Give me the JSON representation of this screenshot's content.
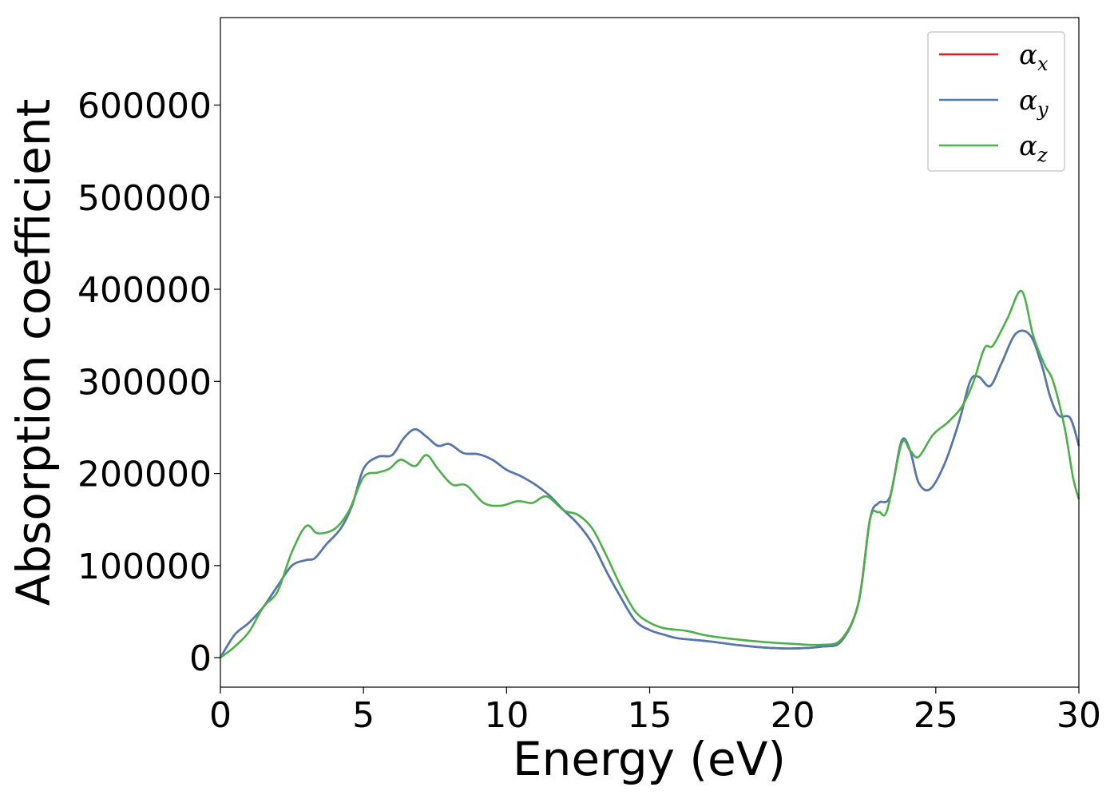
{
  "chart_data": {
    "type": "line",
    "title": "",
    "xlabel": "Energy (eV)",
    "ylabel": "Absorption coefficient",
    "xlim": [
      0,
      30
    ],
    "ylim": [
      -32000,
      695000
    ],
    "xticks": [
      0,
      5,
      10,
      15,
      20,
      25,
      30
    ],
    "yticks": [
      0,
      100000,
      200000,
      300000,
      400000,
      500000,
      600000
    ],
    "grid": false,
    "legend_position": "top-right",
    "series": [
      {
        "name": "α_x",
        "symbol": "α",
        "subscript": "x",
        "color": "#e41a1c",
        "points": [
          [
            0,
            0
          ],
          [
            0.5,
            25000
          ],
          [
            1,
            38000
          ],
          [
            1.5,
            55000
          ],
          [
            2,
            78000
          ],
          [
            2.5,
            100000
          ],
          [
            3,
            106000
          ],
          [
            3.3,
            108000
          ],
          [
            3.7,
            123000
          ],
          [
            4.2,
            140000
          ],
          [
            4.6,
            165000
          ],
          [
            5,
            205000
          ],
          [
            5.5,
            218000
          ],
          [
            6,
            220000
          ],
          [
            6.4,
            238000
          ],
          [
            6.8,
            248000
          ],
          [
            7.2,
            240000
          ],
          [
            7.6,
            230000
          ],
          [
            8,
            232000
          ],
          [
            8.5,
            222000
          ],
          [
            9,
            221000
          ],
          [
            9.5,
            215000
          ],
          [
            10,
            204000
          ],
          [
            10.5,
            197000
          ],
          [
            11,
            188000
          ],
          [
            11.5,
            176000
          ],
          [
            12,
            160000
          ],
          [
            12.5,
            145000
          ],
          [
            13,
            124000
          ],
          [
            13.5,
            93000
          ],
          [
            14,
            65000
          ],
          [
            14.5,
            40000
          ],
          [
            15,
            30000
          ],
          [
            15.5,
            25000
          ],
          [
            16,
            21000
          ],
          [
            17,
            18000
          ],
          [
            18,
            14000
          ],
          [
            19,
            11000
          ],
          [
            20,
            10000
          ],
          [
            21,
            12000
          ],
          [
            21.7,
            18000
          ],
          [
            22.3,
            60000
          ],
          [
            22.7,
            150000
          ],
          [
            23,
            168000
          ],
          [
            23.4,
            175000
          ],
          [
            23.8,
            235000
          ],
          [
            24.1,
            225000
          ],
          [
            24.4,
            190000
          ],
          [
            24.8,
            183000
          ],
          [
            25.3,
            210000
          ],
          [
            25.8,
            255000
          ],
          [
            26.2,
            300000
          ],
          [
            26.5,
            305000
          ],
          [
            26.9,
            295000
          ],
          [
            27.3,
            320000
          ],
          [
            27.8,
            352000
          ],
          [
            28.3,
            350000
          ],
          [
            28.7,
            318000
          ],
          [
            29,
            283000
          ],
          [
            29.3,
            263000
          ],
          [
            29.7,
            260000
          ],
          [
            30,
            230000
          ]
        ]
      },
      {
        "name": "α_y",
        "symbol": "α",
        "subscript": "y",
        "color": "#4e7ab0",
        "points": [
          [
            0,
            0
          ],
          [
            0.5,
            25000
          ],
          [
            1,
            38000
          ],
          [
            1.5,
            55000
          ],
          [
            2,
            78000
          ],
          [
            2.5,
            100000
          ],
          [
            3,
            106000
          ],
          [
            3.3,
            108000
          ],
          [
            3.7,
            123000
          ],
          [
            4.2,
            140000
          ],
          [
            4.6,
            165000
          ],
          [
            5,
            205000
          ],
          [
            5.5,
            218000
          ],
          [
            6,
            220000
          ],
          [
            6.4,
            238000
          ],
          [
            6.8,
            248000
          ],
          [
            7.2,
            240000
          ],
          [
            7.6,
            230000
          ],
          [
            8,
            232000
          ],
          [
            8.5,
            222000
          ],
          [
            9,
            221000
          ],
          [
            9.5,
            215000
          ],
          [
            10,
            204000
          ],
          [
            10.5,
            197000
          ],
          [
            11,
            188000
          ],
          [
            11.5,
            176000
          ],
          [
            12,
            160000
          ],
          [
            12.5,
            145000
          ],
          [
            13,
            124000
          ],
          [
            13.5,
            93000
          ],
          [
            14,
            65000
          ],
          [
            14.5,
            40000
          ],
          [
            15,
            30000
          ],
          [
            15.5,
            25000
          ],
          [
            16,
            21000
          ],
          [
            17,
            18000
          ],
          [
            18,
            14000
          ],
          [
            19,
            11000
          ],
          [
            20,
            10000
          ],
          [
            21,
            12000
          ],
          [
            21.7,
            18000
          ],
          [
            22.3,
            60000
          ],
          [
            22.7,
            150000
          ],
          [
            23,
            168000
          ],
          [
            23.4,
            175000
          ],
          [
            23.8,
            235000
          ],
          [
            24.1,
            225000
          ],
          [
            24.4,
            190000
          ],
          [
            24.8,
            183000
          ],
          [
            25.3,
            210000
          ],
          [
            25.8,
            255000
          ],
          [
            26.2,
            300000
          ],
          [
            26.5,
            305000
          ],
          [
            26.9,
            295000
          ],
          [
            27.3,
            320000
          ],
          [
            27.8,
            352000
          ],
          [
            28.3,
            350000
          ],
          [
            28.7,
            318000
          ],
          [
            29,
            283000
          ],
          [
            29.3,
            263000
          ],
          [
            29.7,
            260000
          ],
          [
            30,
            230000
          ]
        ]
      },
      {
        "name": "α_z",
        "symbol": "α",
        "subscript": "z",
        "color": "#4daf4a",
        "points": [
          [
            0,
            0
          ],
          [
            0.5,
            12000
          ],
          [
            1,
            28000
          ],
          [
            1.5,
            55000
          ],
          [
            2,
            72000
          ],
          [
            2.5,
            115000
          ],
          [
            3,
            143000
          ],
          [
            3.4,
            135000
          ],
          [
            4,
            140000
          ],
          [
            4.5,
            160000
          ],
          [
            5,
            196000
          ],
          [
            5.5,
            201000
          ],
          [
            5.9,
            205000
          ],
          [
            6.3,
            215000
          ],
          [
            6.8,
            208000
          ],
          [
            7.2,
            220000
          ],
          [
            7.6,
            205000
          ],
          [
            8.1,
            188000
          ],
          [
            8.6,
            187000
          ],
          [
            9.2,
            168000
          ],
          [
            9.8,
            165000
          ],
          [
            10.4,
            170000
          ],
          [
            10.9,
            168000
          ],
          [
            11.4,
            175000
          ],
          [
            12,
            160000
          ],
          [
            12.5,
            155000
          ],
          [
            13,
            140000
          ],
          [
            13.5,
            110000
          ],
          [
            14,
            77000
          ],
          [
            14.5,
            50000
          ],
          [
            15,
            38000
          ],
          [
            15.5,
            32000
          ],
          [
            16.3,
            29000
          ],
          [
            17,
            24000
          ],
          [
            18,
            20000
          ],
          [
            19,
            17000
          ],
          [
            20,
            15000
          ],
          [
            21,
            14000
          ],
          [
            21.7,
            20000
          ],
          [
            22.3,
            60000
          ],
          [
            22.7,
            150000
          ],
          [
            23,
            158000
          ],
          [
            23.3,
            160000
          ],
          [
            23.8,
            232000
          ],
          [
            24.1,
            225000
          ],
          [
            24.4,
            218000
          ],
          [
            24.9,
            242000
          ],
          [
            25.4,
            255000
          ],
          [
            25.9,
            272000
          ],
          [
            26.3,
            298000
          ],
          [
            26.7,
            336000
          ],
          [
            27,
            339000
          ],
          [
            27.5,
            368000
          ],
          [
            28,
            398000
          ],
          [
            28.4,
            350000
          ],
          [
            28.8,
            318000
          ],
          [
            29.1,
            300000
          ],
          [
            29.5,
            250000
          ],
          [
            29.8,
            195000
          ],
          [
            30,
            172000
          ]
        ]
      }
    ]
  }
}
